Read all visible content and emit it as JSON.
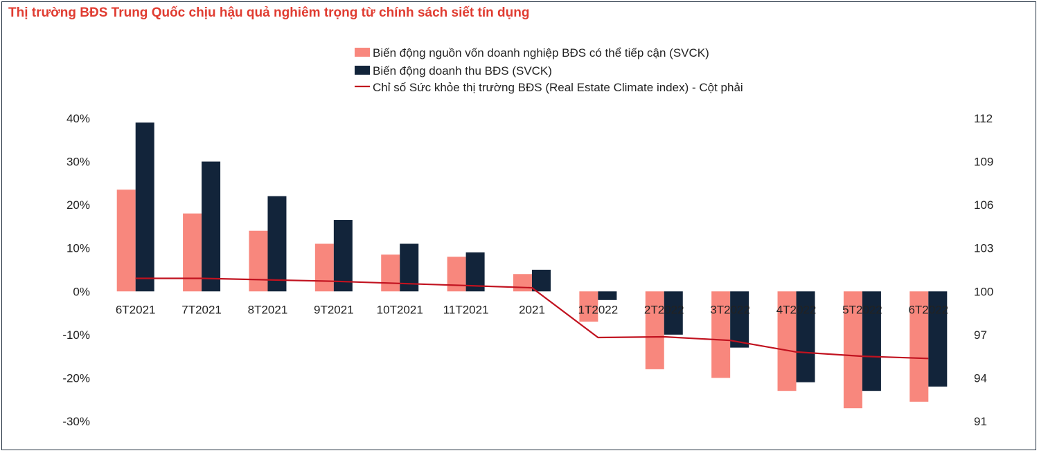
{
  "title": "Thị trường BĐS Trung Quốc chịu hậu quả nghiêm trọng từ chính sách siết tín dụng",
  "colors": {
    "title": "#e03c31",
    "series1": "#f8877d",
    "series2": "#12243a",
    "line": "#c1121f",
    "frame": "#1f2d3d"
  },
  "chart_data": {
    "type": "bar",
    "categories": [
      "6T2021",
      "7T2021",
      "8T2021",
      "9T2021",
      "10T2021",
      "11T2021",
      "2021",
      "1T2022",
      "2T2022",
      "3T2022",
      "4T2022",
      "5T2022",
      "6T2022"
    ],
    "series": [
      {
        "name": "Biến động nguồn vốn doanh nghiệp BĐS có thể tiếp cận (SVCK)",
        "type": "bar",
        "axis": "left",
        "unit": "%",
        "values": [
          23.5,
          18,
          14,
          11,
          8.5,
          8,
          4,
          -7,
          -18,
          -20,
          -23,
          -27,
          -25.5
        ]
      },
      {
        "name": "Biến động doanh thu BĐS (SVCK)",
        "type": "bar",
        "axis": "left",
        "unit": "%",
        "values": [
          39,
          30,
          22,
          16.5,
          11,
          9,
          5,
          -2,
          -10,
          -13,
          -21,
          -23,
          -22
        ]
      },
      {
        "name": "Chỉ số Sức khỏe thị trường BĐS (Real Estate Climate index) - Cột phải",
        "type": "line",
        "axis": "right",
        "values": [
          100.9,
          100.9,
          100.8,
          100.7,
          100.55,
          100.4,
          100.25,
          96.8,
          96.85,
          96.6,
          95.8,
          95.5,
          95.35
        ]
      }
    ],
    "left_axis": {
      "ticks": [
        "40%",
        "30%",
        "20%",
        "10%",
        "0%",
        "-10%",
        "-20%",
        "-30%"
      ],
      "ylim": [
        -30,
        40
      ]
    },
    "right_axis": {
      "ticks": [
        "112",
        "109",
        "106",
        "103",
        "100",
        "97",
        "94",
        "91"
      ],
      "ylim": [
        91,
        112
      ]
    },
    "legend_position": "top-center",
    "grid": false
  }
}
